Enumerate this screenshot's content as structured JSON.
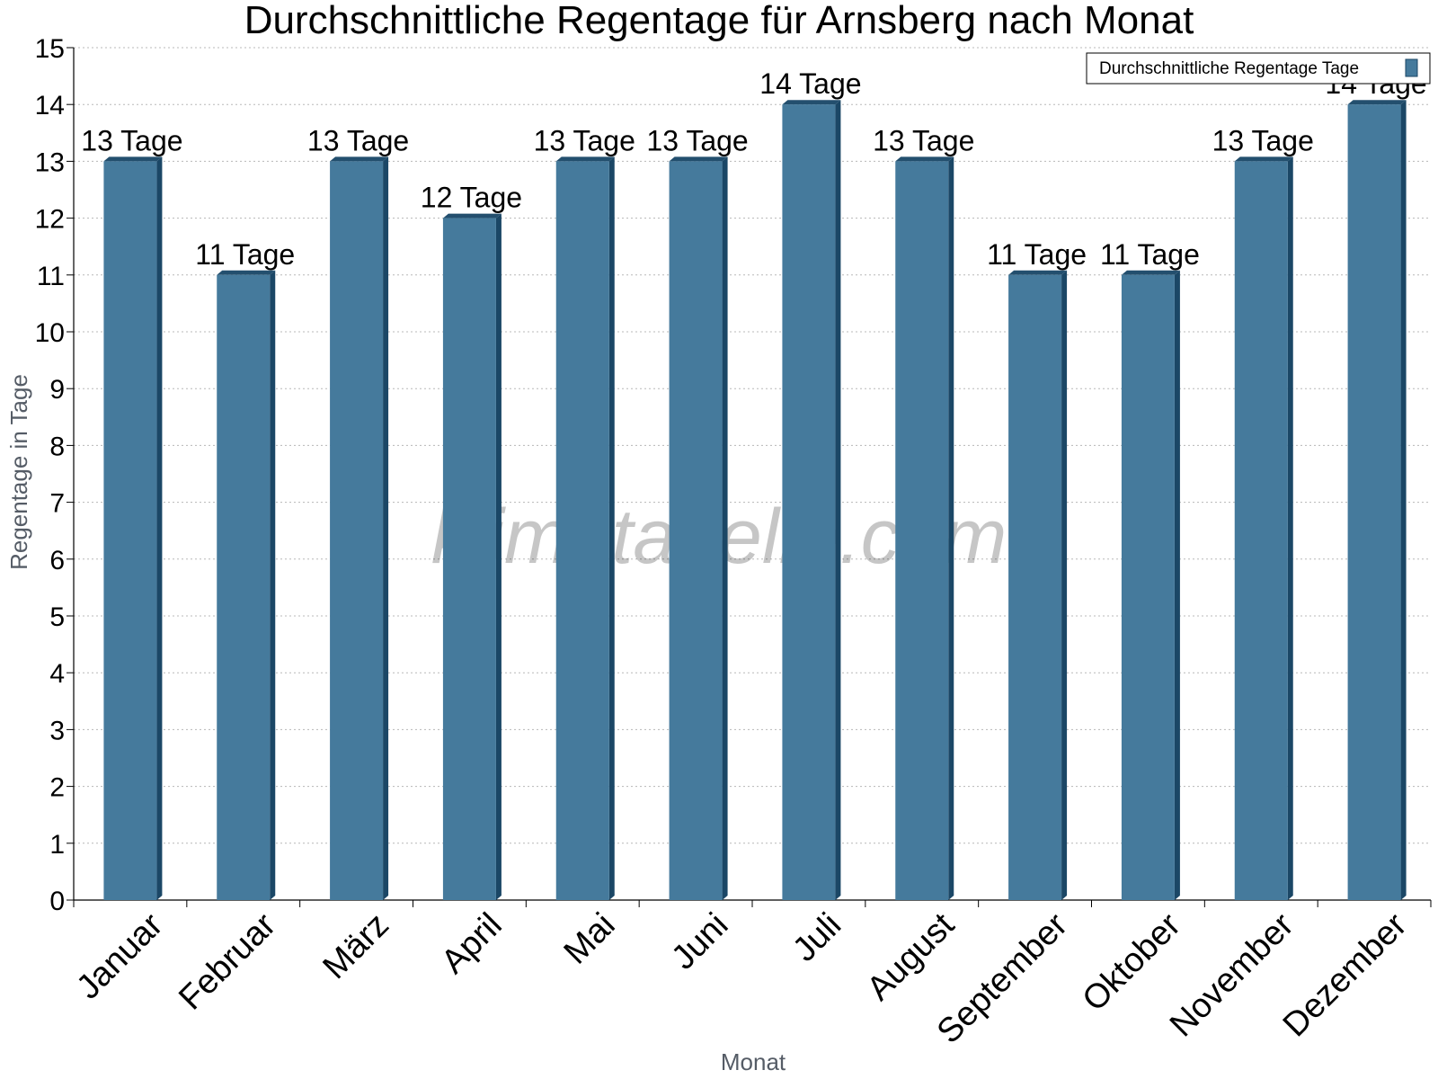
{
  "chart_data": {
    "type": "bar",
    "title": "Durchschnittliche Regentage für Arnsberg nach Monat",
    "xlabel": "Monat",
    "ylabel": "Regentage in Tage",
    "categories": [
      "Januar",
      "Februar",
      "März",
      "April",
      "Mai",
      "Juni",
      "Juli",
      "August",
      "September",
      "Oktober",
      "November",
      "Dezember"
    ],
    "series": [
      {
        "name": "Durchschnittliche Regentage Tage",
        "values": [
          13,
          11,
          13,
          12,
          13,
          13,
          14,
          13,
          11,
          11,
          13,
          14
        ],
        "data_labels": [
          "13 Tage",
          "11 Tage",
          "13 Tage",
          "12 Tage",
          "13 Tage",
          "13 Tage",
          "14 Tage",
          "13 Tage",
          "11 Tage",
          "11 Tage",
          "13 Tage",
          "14 Tage"
        ]
      }
    ],
    "ylim": [
      0,
      15
    ],
    "yticks": [
      "0",
      "1",
      "2",
      "3",
      "4",
      "5",
      "6",
      "7",
      "8",
      "9",
      "10",
      "11",
      "12",
      "13",
      "14",
      "15"
    ],
    "grid": true,
    "legend_position": "top-right",
    "colors": {
      "bar": "#457a9c",
      "bar_side": "#1b4766",
      "bar_top": "#234f6e"
    },
    "watermark": "klimatabelle.com"
  }
}
